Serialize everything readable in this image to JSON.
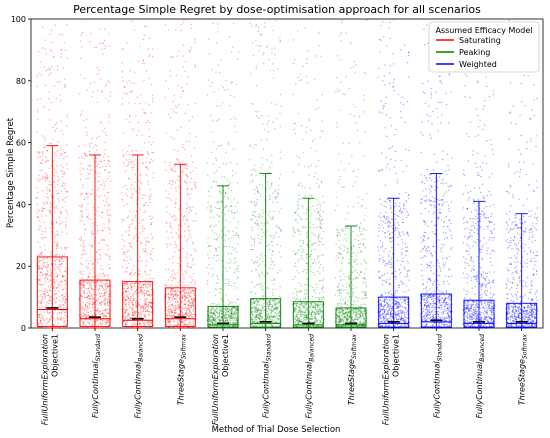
{
  "chart_data": {
    "type": "box",
    "title": "Percentage Simple Regret by dose-optimisation approach for all scenarios",
    "xlabel": "Method of Trial Dose Selection",
    "ylabel": "Percentage Simple Regret",
    "ylim": [
      0,
      100
    ],
    "yticks": [
      0,
      20,
      40,
      60,
      80,
      100
    ],
    "grid": false,
    "legend_placement": "top-right",
    "legend_title": "Assumed Efficacy Model",
    "series": [
      {
        "name": "Saturating",
        "color": "#ff0000"
      },
      {
        "name": "Peaking",
        "color": "#008000"
      },
      {
        "name": "Weighted",
        "color": "#0000ff"
      }
    ],
    "categories": [
      {
        "line1": "FullUniformExploration",
        "line2": "Objective1",
        "series": 0,
        "q1": 0.5,
        "median": 6,
        "q3": 23,
        "whisker_low": 0,
        "whisker_high": 59,
        "mean": 6.5
      },
      {
        "line1": "FullyContinual",
        "sub": "Standard",
        "series": 0,
        "q1": 0.5,
        "median": 3,
        "q3": 15.5,
        "whisker_low": 0,
        "whisker_high": 56,
        "mean": 3.5
      },
      {
        "line1": "FullyContinual",
        "sub": "Balanced",
        "series": 0,
        "q1": 0.5,
        "median": 2.5,
        "q3": 15,
        "whisker_low": 0,
        "whisker_high": 56,
        "mean": 3
      },
      {
        "line1": "ThreeStage",
        "sub": "Softmax",
        "series": 0,
        "q1": 0.5,
        "median": 3,
        "q3": 13,
        "whisker_low": 0,
        "whisker_high": 53,
        "mean": 3.5
      },
      {
        "line1": "FullUniformExploration",
        "line2": "Objective1",
        "series": 1,
        "q1": 0.3,
        "median": 1,
        "q3": 7,
        "whisker_low": 0,
        "whisker_high": 46,
        "mean": 1.5
      },
      {
        "line1": "FullyContinual",
        "sub": "Standard",
        "series": 1,
        "q1": 0.3,
        "median": 1.5,
        "q3": 9.5,
        "whisker_low": 0,
        "whisker_high": 50,
        "mean": 2
      },
      {
        "line1": "FullyContinual",
        "sub": "Balanced",
        "series": 1,
        "q1": 0.3,
        "median": 1,
        "q3": 8.5,
        "whisker_low": 0,
        "whisker_high": 42,
        "mean": 1.5
      },
      {
        "line1": "ThreeStage",
        "sub": "Softmax",
        "series": 1,
        "q1": 0.3,
        "median": 1,
        "q3": 6.5,
        "whisker_low": 0,
        "whisker_high": 33,
        "mean": 1.5
      },
      {
        "line1": "FullUniformExploration",
        "line2": "Objective1",
        "series": 2,
        "q1": 0.3,
        "median": 1.5,
        "q3": 10,
        "whisker_low": 0,
        "whisker_high": 42,
        "mean": 2
      },
      {
        "line1": "FullyContinual",
        "sub": "Standard",
        "series": 2,
        "q1": 0.3,
        "median": 2,
        "q3": 11,
        "whisker_low": 0,
        "whisker_high": 50,
        "mean": 2.5
      },
      {
        "line1": "FullyContinual",
        "sub": "Balanced",
        "series": 2,
        "q1": 0.3,
        "median": 1.5,
        "q3": 9,
        "whisker_low": 0,
        "whisker_high": 41,
        "mean": 2
      },
      {
        "line1": "ThreeStage",
        "sub": "Softmax",
        "series": 2,
        "q1": 0.3,
        "median": 1.5,
        "q3": 8,
        "whisker_low": 0,
        "whisker_high": 37,
        "mean": 2
      }
    ]
  }
}
